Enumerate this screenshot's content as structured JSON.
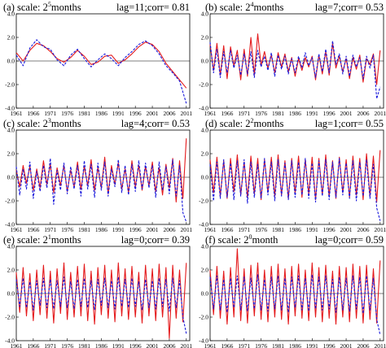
{
  "colors": {
    "series_a": "#e41a1c",
    "series_b": "#1a1adc"
  },
  "chart_data": [
    {
      "type": "line",
      "label": "(a)",
      "scale_prefix": "scale: 2",
      "scale_exp": "5",
      "scale_unit": "months",
      "stat": "lag=11;corr= 0.81",
      "x": [
        1961,
        1963,
        1965,
        1967,
        1969,
        1971,
        1973,
        1975,
        1977,
        1979,
        1981,
        1983,
        1985,
        1987,
        1989,
        1991,
        1993,
        1995,
        1997,
        1999,
        2001,
        2003,
        2005,
        2007,
        2009,
        2011
      ],
      "series": [
        {
          "color": "red",
          "values": [
            0.7,
            0.0,
            0.9,
            1.5,
            1.3,
            0.8,
            0.2,
            -0.1,
            0.3,
            0.9,
            0.4,
            -0.3,
            -0.1,
            0.4,
            0.5,
            -0.2,
            0.1,
            0.6,
            1.2,
            1.6,
            1.4,
            0.8,
            -0.2,
            -0.9,
            -1.6,
            -2.3
          ]
        },
        {
          "color": "blue",
          "values": [
            0.5,
            -0.4,
            1.1,
            1.8,
            1.2,
            1.0,
            0.1,
            -0.4,
            0.5,
            1.0,
            0.2,
            -0.5,
            0.1,
            0.6,
            0.2,
            -0.4,
            0.3,
            0.8,
            1.4,
            1.7,
            1.3,
            0.6,
            -0.4,
            -1.0,
            -1.7,
            -3.6
          ]
        }
      ],
      "xlim": [
        1961,
        2012
      ],
      "ylim": [
        -4,
        4
      ],
      "yticks": [
        "4.0",
        "2.0",
        "0.0",
        "-2.0",
        "-4.0"
      ],
      "xticks": [
        "1961",
        "1966",
        "1971",
        "1976",
        "1981",
        "1986",
        "1991",
        "1996",
        "2001",
        "2006",
        "2011"
      ]
    },
    {
      "type": "line",
      "label": "(b)",
      "scale_prefix": "scale: 2",
      "scale_exp": "4",
      "scale_unit": "months",
      "stat": "lag=7;corr= 0.53",
      "x": [
        1961,
        1962,
        1963,
        1964,
        1965,
        1966,
        1967,
        1968,
        1969,
        1970,
        1971,
        1972,
        1973,
        1974,
        1975,
        1976,
        1977,
        1978,
        1979,
        1980,
        1981,
        1982,
        1983,
        1984,
        1985,
        1986,
        1987,
        1988,
        1989,
        1990,
        1991,
        1992,
        1993,
        1994,
        1995,
        1996,
        1997,
        1998,
        1999,
        2000,
        2001,
        2002,
        2003,
        2004,
        2005,
        2006,
        2007,
        2008,
        2009,
        2010,
        2011
      ],
      "series": [
        {
          "color": "red",
          "values": [
            1.4,
            -0.8,
            1.5,
            -1.2,
            1.3,
            -1.5,
            1.2,
            -0.4,
            0.9,
            -1.6,
            1.0,
            -1.3,
            2.0,
            -1.2,
            2.3,
            -0.4,
            0.8,
            -0.6,
            0.5,
            -1.0,
            0.7,
            -0.5,
            0.6,
            -0.9,
            0.3,
            -1.3,
            0.2,
            -0.8,
            0.3,
            -0.5,
            0.4,
            -1.6,
            0.5,
            -1.1,
            0.8,
            -1.2,
            1.5,
            -0.6,
            0.4,
            -0.9,
            0.2,
            -1.5,
            0.3,
            -0.7,
            0.5,
            -1.8,
            0.2,
            -0.3,
            0.6,
            -2.0,
            0.9
          ]
        },
        {
          "color": "blue",
          "values": [
            1.6,
            -1.0,
            1.0,
            -1.4,
            0.8,
            -1.0,
            0.9,
            -0.6,
            0.5,
            -1.2,
            0.6,
            -1.1,
            0.8,
            -1.4,
            0.9,
            -0.5,
            0.4,
            -0.8,
            0.7,
            -1.3,
            0.5,
            -0.7,
            0.4,
            -1.1,
            0.2,
            -1.0,
            0.4,
            -0.6,
            0.7,
            -0.4,
            0.3,
            -1.4,
            0.6,
            -0.9,
            1.0,
            -1.0,
            1.7,
            -0.3,
            0.6,
            -1.1,
            0.4,
            -1.3,
            0.5,
            -0.5,
            0.3,
            -1.5,
            0.4,
            -0.6,
            0.5,
            -3.2,
            -2.2
          ]
        }
      ],
      "xlim": [
        1961,
        2012
      ],
      "ylim": [
        -4,
        4
      ],
      "yticks": [
        "4.0",
        "2.0",
        "0.0",
        "-2.0",
        "-4.0"
      ],
      "xticks": [
        "1961",
        "1966",
        "1971",
        "1976",
        "1981",
        "1986",
        "1991",
        "1996",
        "2001",
        "2006",
        "2011"
      ]
    },
    {
      "type": "line",
      "label": "(c)",
      "scale_prefix": "scale: 2",
      "scale_exp": "3",
      "scale_unit": "months",
      "stat": "lag=4;corr= 0.53",
      "x": [
        1961,
        1962,
        1963,
        1964,
        1965,
        1966,
        1967,
        1968,
        1969,
        1970,
        1971,
        1972,
        1973,
        1974,
        1975,
        1976,
        1977,
        1978,
        1979,
        1980,
        1981,
        1982,
        1983,
        1984,
        1985,
        1986,
        1987,
        1988,
        1989,
        1990,
        1991,
        1992,
        1993,
        1994,
        1995,
        1996,
        1997,
        1998,
        1999,
        2000,
        2001,
        2002,
        2003,
        2004,
        2005,
        2006,
        2007,
        2008,
        2009,
        2010,
        2011
      ],
      "series": [
        {
          "color": "red",
          "values": [
            0.6,
            -0.8,
            1.0,
            -0.5,
            0.9,
            -1.1,
            0.7,
            -0.9,
            1.4,
            -0.6,
            1.1,
            -1.3,
            0.8,
            -0.7,
            1.0,
            -1.2,
            0.6,
            -0.8,
            1.3,
            -1.0,
            0.9,
            -0.7,
            1.5,
            -1.1,
            0.8,
            -0.9,
            1.7,
            -1.4,
            1.0,
            -0.6,
            1.2,
            -1.0,
            0.7,
            -1.3,
            1.4,
            -0.8,
            1.0,
            -1.1,
            0.9,
            -0.7,
            1.3,
            -1.2,
            0.8,
            -1.5,
            1.1,
            -0.9,
            1.6,
            -2.1,
            1.4,
            -1.8,
            3.3
          ]
        },
        {
          "color": "blue",
          "values": [
            0.9,
            -1.5,
            0.7,
            -1.0,
            1.3,
            -1.8,
            0.5,
            -1.2,
            1.0,
            -0.9,
            1.6,
            -2.3,
            0.6,
            -1.1,
            1.2,
            -1.4,
            0.9,
            -1.0,
            1.0,
            -1.6,
            1.4,
            -1.0,
            1.1,
            -1.7,
            1.2,
            -1.1,
            1.3,
            -1.6,
            0.7,
            -0.8,
            1.5,
            -1.3,
            1.0,
            -1.5,
            1.1,
            -1.2,
            1.4,
            -1.0,
            1.2,
            -0.9,
            1.0,
            -1.7,
            1.3,
            -1.1,
            0.9,
            -1.4,
            1.5,
            -1.6,
            1.0,
            -3.0,
            -3.8
          ]
        }
      ],
      "xlim": [
        1961,
        2012
      ],
      "ylim": [
        -4,
        4
      ],
      "yticks": [
        "4.0",
        "2.0",
        "0.0",
        "-2.0",
        "-4.0"
      ],
      "xticks": [
        "1961",
        "1966",
        "1971",
        "1976",
        "1981",
        "1986",
        "1991",
        "1996",
        "2001",
        "2006",
        "2011"
      ]
    },
    {
      "type": "line",
      "label": "(d)",
      "scale_prefix": "scale: 2",
      "scale_exp": "2",
      "scale_unit": "months",
      "stat": "lag=1;corr= 0.55",
      "x": [
        1961,
        1962,
        1963,
        1964,
        1965,
        1966,
        1967,
        1968,
        1969,
        1970,
        1971,
        1972,
        1973,
        1974,
        1975,
        1976,
        1977,
        1978,
        1979,
        1980,
        1981,
        1982,
        1983,
        1984,
        1985,
        1986,
        1987,
        1988,
        1989,
        1990,
        1991,
        1992,
        1993,
        1994,
        1995,
        1996,
        1997,
        1998,
        1999,
        2000,
        2001,
        2002,
        2003,
        2004,
        2005,
        2006,
        2007,
        2008,
        2009,
        2010,
        2011
      ],
      "series": [
        {
          "color": "red",
          "values": [
            1.5,
            -1.3,
            1.7,
            -1.6,
            1.4,
            -1.8,
            1.6,
            -1.2,
            1.9,
            -1.5,
            1.3,
            -1.7,
            1.8,
            -1.4,
            1.6,
            -1.9,
            1.5,
            -1.3,
            1.7,
            -1.6,
            1.9,
            -1.5,
            1.4,
            -1.8,
            1.6,
            -1.3,
            1.8,
            -1.7,
            1.5,
            -1.4,
            1.7,
            -1.9,
            1.6,
            -1.5,
            1.9,
            -1.6,
            1.4,
            -1.8,
            1.7,
            -1.3,
            1.5,
            -1.7,
            1.8,
            -1.5,
            1.6,
            -1.9,
            2.0,
            -1.6,
            1.8,
            -2.1,
            2.3
          ]
        },
        {
          "color": "blue",
          "values": [
            1.1,
            -2.0,
            1.3,
            -1.8,
            1.5,
            -1.7,
            1.2,
            -1.9,
            1.4,
            -1.6,
            1.5,
            -2.2,
            1.3,
            -1.7,
            1.1,
            -1.8,
            1.6,
            -1.5,
            1.3,
            -2.0,
            1.5,
            -1.6,
            1.2,
            -1.9,
            1.4,
            -1.7,
            1.3,
            -1.5,
            1.6,
            -1.8,
            1.2,
            -2.1,
            1.4,
            -1.6,
            1.5,
            -1.9,
            1.3,
            -1.7,
            1.6,
            -1.5,
            1.2,
            -1.8,
            1.4,
            -2.0,
            1.3,
            -1.6,
            1.5,
            -1.8,
            1.1,
            -2.6,
            -3.7
          ]
        }
      ],
      "xlim": [
        1961,
        2012
      ],
      "ylim": [
        -4,
        4
      ],
      "yticks": [
        "4.0",
        "2.0",
        "0.0",
        "-2.0",
        "-4.0"
      ],
      "xticks": [
        "1961",
        "1966",
        "1971",
        "1976",
        "1981",
        "1986",
        "1991",
        "1996",
        "2001",
        "2006",
        "2011"
      ]
    },
    {
      "type": "line",
      "label": "(e)",
      "scale_prefix": "scale: 2",
      "scale_exp": "1",
      "scale_unit": "months",
      "stat": "lag=0;corr= 0.39",
      "x": [
        1961,
        1962,
        1963,
        1964,
        1965,
        1966,
        1967,
        1968,
        1969,
        1970,
        1971,
        1972,
        1973,
        1974,
        1975,
        1976,
        1977,
        1978,
        1979,
        1980,
        1981,
        1982,
        1983,
        1984,
        1985,
        1986,
        1987,
        1988,
        1989,
        1990,
        1991,
        1992,
        1993,
        1994,
        1995,
        1996,
        1997,
        1998,
        1999,
        2000,
        2001,
        2002,
        2003,
        2004,
        2005,
        2006,
        2007,
        2008,
        2009,
        2010,
        2011
      ],
      "series": [
        {
          "color": "red",
          "values": [
            1.8,
            -1.6,
            2.2,
            -1.9,
            1.7,
            -2.3,
            2.0,
            -1.8,
            2.4,
            -2.1,
            1.9,
            -2.5,
            2.1,
            -1.7,
            2.6,
            -2.2,
            1.8,
            -2.0,
            2.3,
            -1.9,
            2.5,
            -2.3,
            1.9,
            -2.6,
            2.2,
            -1.8,
            2.4,
            -2.1,
            2.0,
            -2.4,
            2.6,
            -1.9,
            2.1,
            -2.2,
            2.3,
            -2.0,
            1.8,
            -2.5,
            2.4,
            -1.9,
            2.1,
            -2.3,
            2.5,
            -2.0,
            2.2,
            -3.8,
            2.4,
            -2.1,
            2.0,
            -2.4,
            2.6
          ]
        },
        {
          "color": "blue",
          "values": [
            1.2,
            -1.1,
            1.3,
            -1.2,
            1.0,
            -1.4,
            1.1,
            -1.0,
            1.3,
            -1.2,
            1.2,
            -1.3,
            1.1,
            -1.1,
            1.4,
            -1.2,
            1.0,
            -1.3,
            1.2,
            -1.1,
            1.3,
            -1.2,
            1.1,
            -1.4,
            1.2,
            -1.0,
            1.3,
            -1.2,
            1.1,
            -1.3,
            1.4,
            -1.1,
            1.2,
            -1.2,
            1.3,
            -1.1,
            1.0,
            -1.4,
            1.2,
            -1.2,
            1.1,
            -1.3,
            1.3,
            -1.1,
            1.2,
            -1.5,
            1.3,
            -1.2,
            1.1,
            -2.0,
            -3.4
          ]
        }
      ],
      "xlim": [
        1961,
        2012
      ],
      "ylim": [
        -4,
        4
      ],
      "yticks": [
        "4.0",
        "2.0",
        "0.0",
        "-2.0",
        "-4.0"
      ],
      "xticks": [
        "1961",
        "1966",
        "1971",
        "1976",
        "1981",
        "1986",
        "1991",
        "1996",
        "2001",
        "2006",
        "2011"
      ]
    },
    {
      "type": "line",
      "label": "(f)",
      "scale_prefix": "scale: 2",
      "scale_exp": "0",
      "scale_unit": "month",
      "stat": "lag=0;corr= 0.59",
      "x": [
        1961,
        1962,
        1963,
        1964,
        1965,
        1966,
        1967,
        1968,
        1969,
        1970,
        1971,
        1972,
        1973,
        1974,
        1975,
        1976,
        1977,
        1978,
        1979,
        1980,
        1981,
        1982,
        1983,
        1984,
        1985,
        1986,
        1987,
        1988,
        1989,
        1990,
        1991,
        1992,
        1993,
        1994,
        1995,
        1996,
        1997,
        1998,
        1999,
        2000,
        2001,
        2002,
        2003,
        2004,
        2005,
        2006,
        2007,
        2008,
        2009,
        2010,
        2011
      ],
      "series": [
        {
          "color": "red",
          "values": [
            2.0,
            -1.8,
            2.3,
            -2.1,
            1.9,
            -2.6,
            2.2,
            -2.0,
            3.8,
            -2.3,
            2.1,
            -2.5,
            2.4,
            -1.9,
            2.6,
            -2.2,
            2.0,
            -2.4,
            2.3,
            -2.0,
            2.5,
            -2.2,
            2.1,
            -2.6,
            2.3,
            -1.9,
            2.5,
            -2.1,
            2.0,
            -2.3,
            2.6,
            -2.0,
            2.2,
            -2.4,
            2.4,
            -2.1,
            1.9,
            -2.6,
            2.3,
            -2.0,
            2.2,
            -2.4,
            2.5,
            -2.1,
            2.3,
            -2.5,
            2.4,
            -2.2,
            2.1,
            -2.5,
            2.8
          ]
        },
        {
          "color": "blue",
          "values": [
            1.4,
            -1.3,
            1.5,
            -1.4,
            1.2,
            -1.6,
            1.3,
            -1.2,
            1.5,
            -1.4,
            1.4,
            -1.5,
            1.3,
            -1.3,
            1.6,
            -1.4,
            1.2,
            -1.5,
            1.4,
            -1.3,
            1.5,
            -1.4,
            1.3,
            -1.6,
            1.4,
            -1.2,
            1.5,
            -1.4,
            1.3,
            -1.5,
            1.6,
            -1.3,
            1.4,
            -1.4,
            1.5,
            -1.3,
            1.2,
            -1.6,
            1.4,
            -1.4,
            1.3,
            -1.5,
            1.5,
            -1.3,
            1.4,
            -1.7,
            1.5,
            -1.4,
            1.3,
            -2.2,
            -3.5
          ]
        }
      ],
      "xlim": [
        1961,
        2012
      ],
      "ylim": [
        -4,
        4
      ],
      "yticks": [
        "4.0",
        "2.0",
        "0.0",
        "-2.0",
        "-4.0"
      ],
      "xticks": [
        "1961",
        "1966",
        "1971",
        "1976",
        "1981",
        "1986",
        "1991",
        "1996",
        "2001",
        "2006",
        "2011"
      ]
    }
  ]
}
